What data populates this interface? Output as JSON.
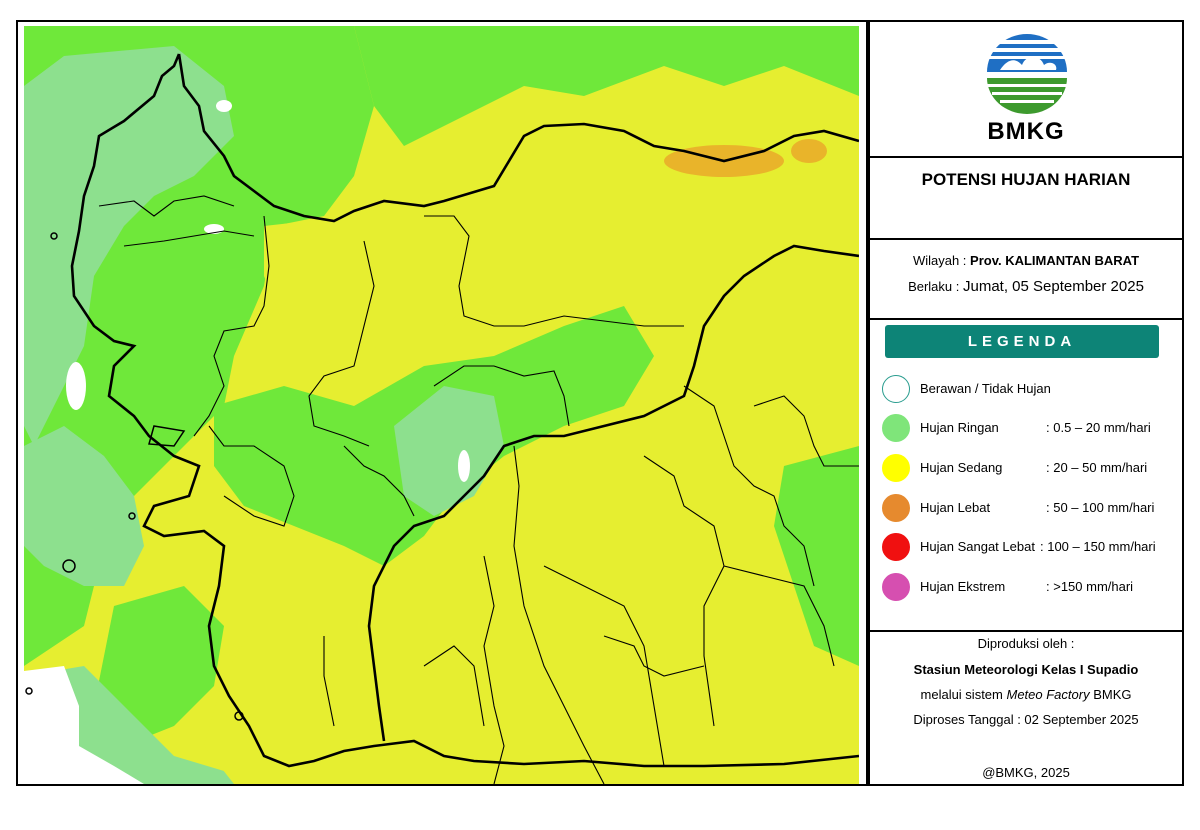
{
  "map": {
    "label_tooltip": ""
  },
  "brand": {
    "name": "BMKG",
    "logo_colors": {
      "blue": "#1f6fc4",
      "green": "#3d9a2e",
      "white": "#ffffff"
    }
  },
  "title": "POTENSI HUJAN HARIAN",
  "info": {
    "region_label": "Wilayah : ",
    "region_value": "Prov. KALIMANTAN BARAT",
    "valid_label": "Berlaku : ",
    "valid_value": "Jumat, 05 September 2025"
  },
  "legend": {
    "heading": "LEGENDA",
    "items": [
      {
        "label": "Berawan / Tidak Hujan",
        "range": "",
        "color": "#ffffff",
        "border": "#2a9d8f"
      },
      {
        "label": "Hujan Ringan",
        "range": ": 0.5 – 20 mm/hari",
        "color": "#7fe57a",
        "border": "#7fe57a"
      },
      {
        "label": "Hujan Sedang",
        "range": ": 20 – 50 mm/hari",
        "color": "#ffff00",
        "border": "#ffff00"
      },
      {
        "label": "Hujan Lebat",
        "range": ": 50 – 100 mm/hari",
        "color": "#e68a2e",
        "border": "#e68a2e"
      },
      {
        "label": "Hujan Sangat Lebat",
        "range": ": 100 – 150 mm/hari",
        "color": "#f01010",
        "border": "#f01010"
      },
      {
        "label": "Hujan Ekstrem",
        "range": ": >150 mm/hari",
        "color": "#d64fb0",
        "border": "#d64fb0"
      }
    ]
  },
  "credit": {
    "produced_by": "Diproduksi oleh :",
    "station": "Stasiun Meteorologi Kelas I Supadio",
    "system_prefix": "melalui sistem ",
    "system_name": "Meteo Factory",
    "system_suffix": " BMKG",
    "processed": "Diproses Tanggal : 02 September 2025",
    "copyright": "@BMKG, 2025"
  },
  "colors": {
    "map_yellow": "#e6ee30",
    "map_green": "#6fe83a",
    "map_lightgreen": "#8de08e",
    "map_orange": "#e9b42a",
    "legend_header": "#0d8477"
  }
}
